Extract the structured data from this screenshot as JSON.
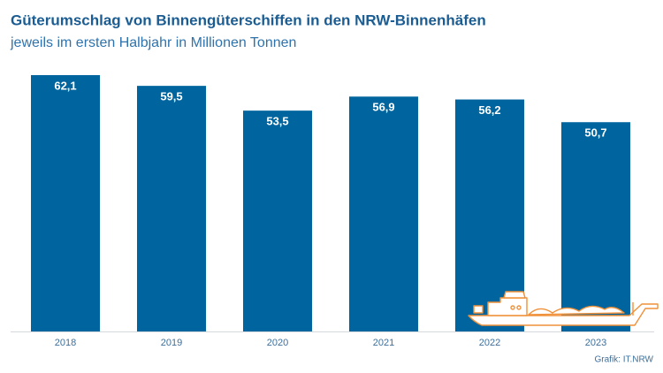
{
  "chart_data": {
    "type": "bar",
    "title": "Güterumschlag von Binnengüterschiffen in den NRW-Binnenhäfen",
    "subtitle": "jeweils im ersten Halbjahr in Millionen Tonnen",
    "categories": [
      "2018",
      "2019",
      "2020",
      "2021",
      "2022",
      "2023"
    ],
    "values": [
      62.1,
      59.5,
      53.5,
      56.9,
      56.2,
      50.7
    ],
    "value_labels": [
      "62,1",
      "59,5",
      "53,5",
      "56,9",
      "56,2",
      "50,7"
    ],
    "color": "#00659e",
    "source": "Grafik: IT.NRW"
  }
}
